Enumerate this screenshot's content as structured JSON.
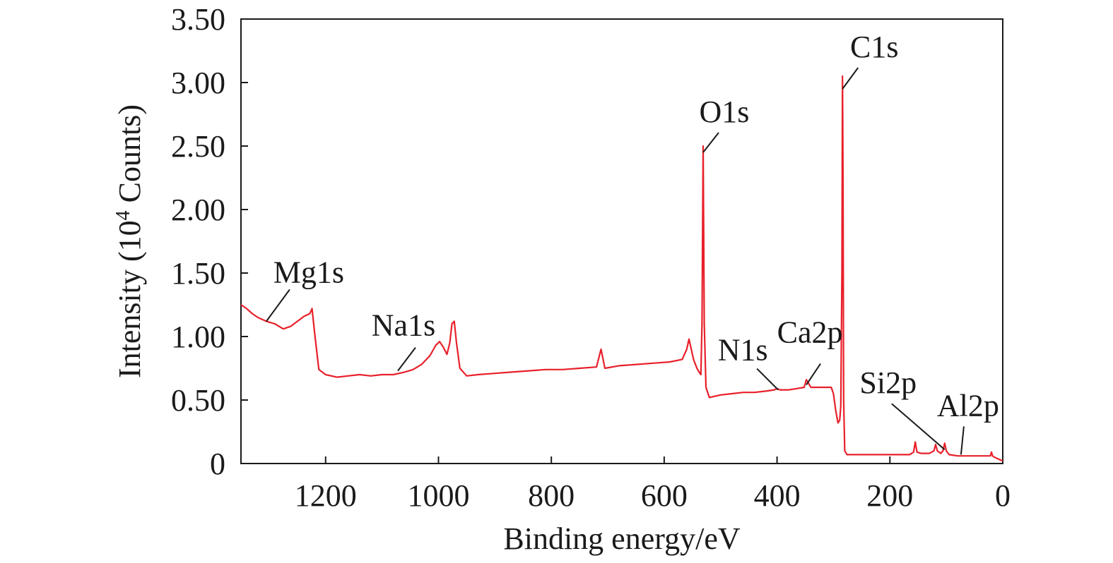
{
  "chart_data": {
    "type": "line",
    "xlabel": "Binding energy/eV",
    "ylabel_prefix": "Intensity (10",
    "ylabel_sup": "4",
    "ylabel_suffix": " Counts)",
    "xlim": [
      1350,
      0
    ],
    "ylim": [
      0,
      3.5
    ],
    "x_reversed": true,
    "grid": false,
    "x_ticks": [
      1200,
      1000,
      800,
      600,
      400,
      200,
      0
    ],
    "x_tick_labels": [
      "1200",
      "1000",
      "800",
      "600",
      "400",
      "200",
      "0"
    ],
    "y_ticks": [
      0,
      0.5,
      1.0,
      1.5,
      2.0,
      2.5,
      3.0,
      3.5
    ],
    "y_tick_labels": [
      "0",
      "0.50",
      "1.00",
      "1.50",
      "2.00",
      "2.50",
      "3.00",
      "3.50"
    ],
    "series": [
      {
        "color": "#e8202a",
        "x": [
          1350,
          1340,
          1330,
          1320,
          1305,
          1290,
          1275,
          1262,
          1250,
          1238,
          1228,
          1224,
          1220,
          1212,
          1200,
          1180,
          1160,
          1140,
          1120,
          1100,
          1080,
          1060,
          1045,
          1030,
          1015,
          1005,
          998,
          992,
          985,
          980,
          976,
          972,
          968,
          962,
          950,
          930,
          900,
          870,
          840,
          810,
          780,
          750,
          720,
          712,
          705,
          680,
          650,
          620,
          590,
          568,
          560,
          556,
          552,
          548,
          542,
          538,
          535,
          533,
          531,
          529,
          526,
          520,
          500,
          480,
          460,
          440,
          420,
          405,
          400,
          395,
          380,
          365,
          352,
          348,
          340,
          320,
          304,
          300,
          296,
          292,
          289,
          287,
          285,
          284,
          283,
          282,
          280,
          276,
          270,
          250,
          230,
          200,
          180,
          165,
          158,
          155,
          152,
          145,
          130,
          122,
          119,
          116,
          110,
          106,
          103,
          100,
          95,
          80,
          70,
          60,
          50,
          40,
          30,
          22,
          20,
          18,
          15,
          10,
          5,
          0
        ],
        "y": [
          1.25,
          1.22,
          1.18,
          1.15,
          1.12,
          1.1,
          1.06,
          1.08,
          1.12,
          1.16,
          1.18,
          1.22,
          1.05,
          0.74,
          0.7,
          0.68,
          0.69,
          0.7,
          0.69,
          0.7,
          0.7,
          0.72,
          0.74,
          0.78,
          0.85,
          0.93,
          0.96,
          0.92,
          0.86,
          0.95,
          1.1,
          1.12,
          0.95,
          0.75,
          0.69,
          0.7,
          0.71,
          0.72,
          0.73,
          0.74,
          0.74,
          0.75,
          0.76,
          0.9,
          0.75,
          0.77,
          0.78,
          0.79,
          0.8,
          0.82,
          0.9,
          0.98,
          0.9,
          0.82,
          0.75,
          0.72,
          0.7,
          1.1,
          2.5,
          1.1,
          0.6,
          0.52,
          0.54,
          0.55,
          0.56,
          0.56,
          0.57,
          0.58,
          0.59,
          0.58,
          0.58,
          0.59,
          0.6,
          0.66,
          0.6,
          0.6,
          0.6,
          0.55,
          0.42,
          0.32,
          0.34,
          0.45,
          1.5,
          3.05,
          2.2,
          0.5,
          0.1,
          0.07,
          0.07,
          0.07,
          0.07,
          0.07,
          0.07,
          0.07,
          0.09,
          0.17,
          0.09,
          0.08,
          0.08,
          0.1,
          0.15,
          0.1,
          0.08,
          0.1,
          0.16,
          0.1,
          0.07,
          0.06,
          0.06,
          0.06,
          0.06,
          0.06,
          0.06,
          0.06,
          0.09,
          0.06,
          0.05,
          0.04,
          0.03,
          0.02
        ]
      }
    ],
    "annotations": [
      {
        "label": "Mg1s",
        "x": 1305,
        "y": 1.12
      },
      {
        "label": "Na1s",
        "x": 1072,
        "y": 0.73
      },
      {
        "label": "O1s",
        "x": 531,
        "y": 2.45
      },
      {
        "label": "N1s",
        "x": 398,
        "y": 0.58
      },
      {
        "label": "Ca2p",
        "x": 348,
        "y": 0.62
      },
      {
        "label": "C1s",
        "x": 284,
        "y": 2.95
      },
      {
        "label": "Si2p",
        "x": 103,
        "y": 0.11
      },
      {
        "label": "Al2p",
        "x": 74,
        "y": 0.07
      }
    ]
  }
}
